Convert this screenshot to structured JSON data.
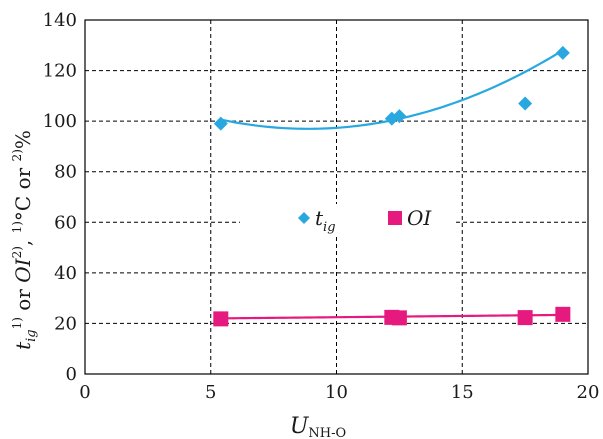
{
  "chart_data": {
    "type": "scatter",
    "x_ticks": [
      "0",
      "5",
      "10",
      "15",
      "20"
    ],
    "y_ticks": [
      "0",
      "20",
      "40",
      "60",
      "80",
      "100",
      "120",
      "140"
    ],
    "xlim": [
      0,
      20
    ],
    "ylim": [
      0,
      140
    ],
    "grid": true,
    "legend_position": "center",
    "xlabel": {
      "main": "U",
      "sub": "NH-O"
    },
    "ylabel": {
      "part1": "t",
      "part1_sub": "ig",
      "part1_sup": "1)",
      "part2": " or ",
      "part3": "OI",
      "part3_sup": "2)",
      "part4": ", ",
      "part4_sup": "1)",
      "part5": "°C or ",
      "part5_sup": "2)",
      "part6": "%"
    },
    "series": [
      {
        "name": "t",
        "name_sub": "ig",
        "marker": "diamond",
        "color": "#29a8e0",
        "points": [
          {
            "x": 5.4,
            "y": 99
          },
          {
            "x": 12.2,
            "y": 101
          },
          {
            "x": 12.5,
            "y": 102
          },
          {
            "x": 17.5,
            "y": 107
          },
          {
            "x": 19.0,
            "y": 127
          }
        ],
        "trendline": {
          "type": "poly2",
          "coeffs": [
            0.3026,
            -5.369,
            120.78
          ],
          "x_range": [
            5.4,
            19.0
          ]
        }
      },
      {
        "name": "OI",
        "marker": "square",
        "color": "#e6197f",
        "points": [
          {
            "x": 5.4,
            "y": 21.8
          },
          {
            "x": 12.2,
            "y": 22.4
          },
          {
            "x": 12.5,
            "y": 22.2
          },
          {
            "x": 17.5,
            "y": 22.3
          },
          {
            "x": 19.0,
            "y": 23.6
          }
        ],
        "trendline": {
          "type": "linear",
          "coeffs": [
            0.1,
            21.46
          ],
          "x_range": [
            5.4,
            19.0
          ]
        }
      }
    ]
  }
}
